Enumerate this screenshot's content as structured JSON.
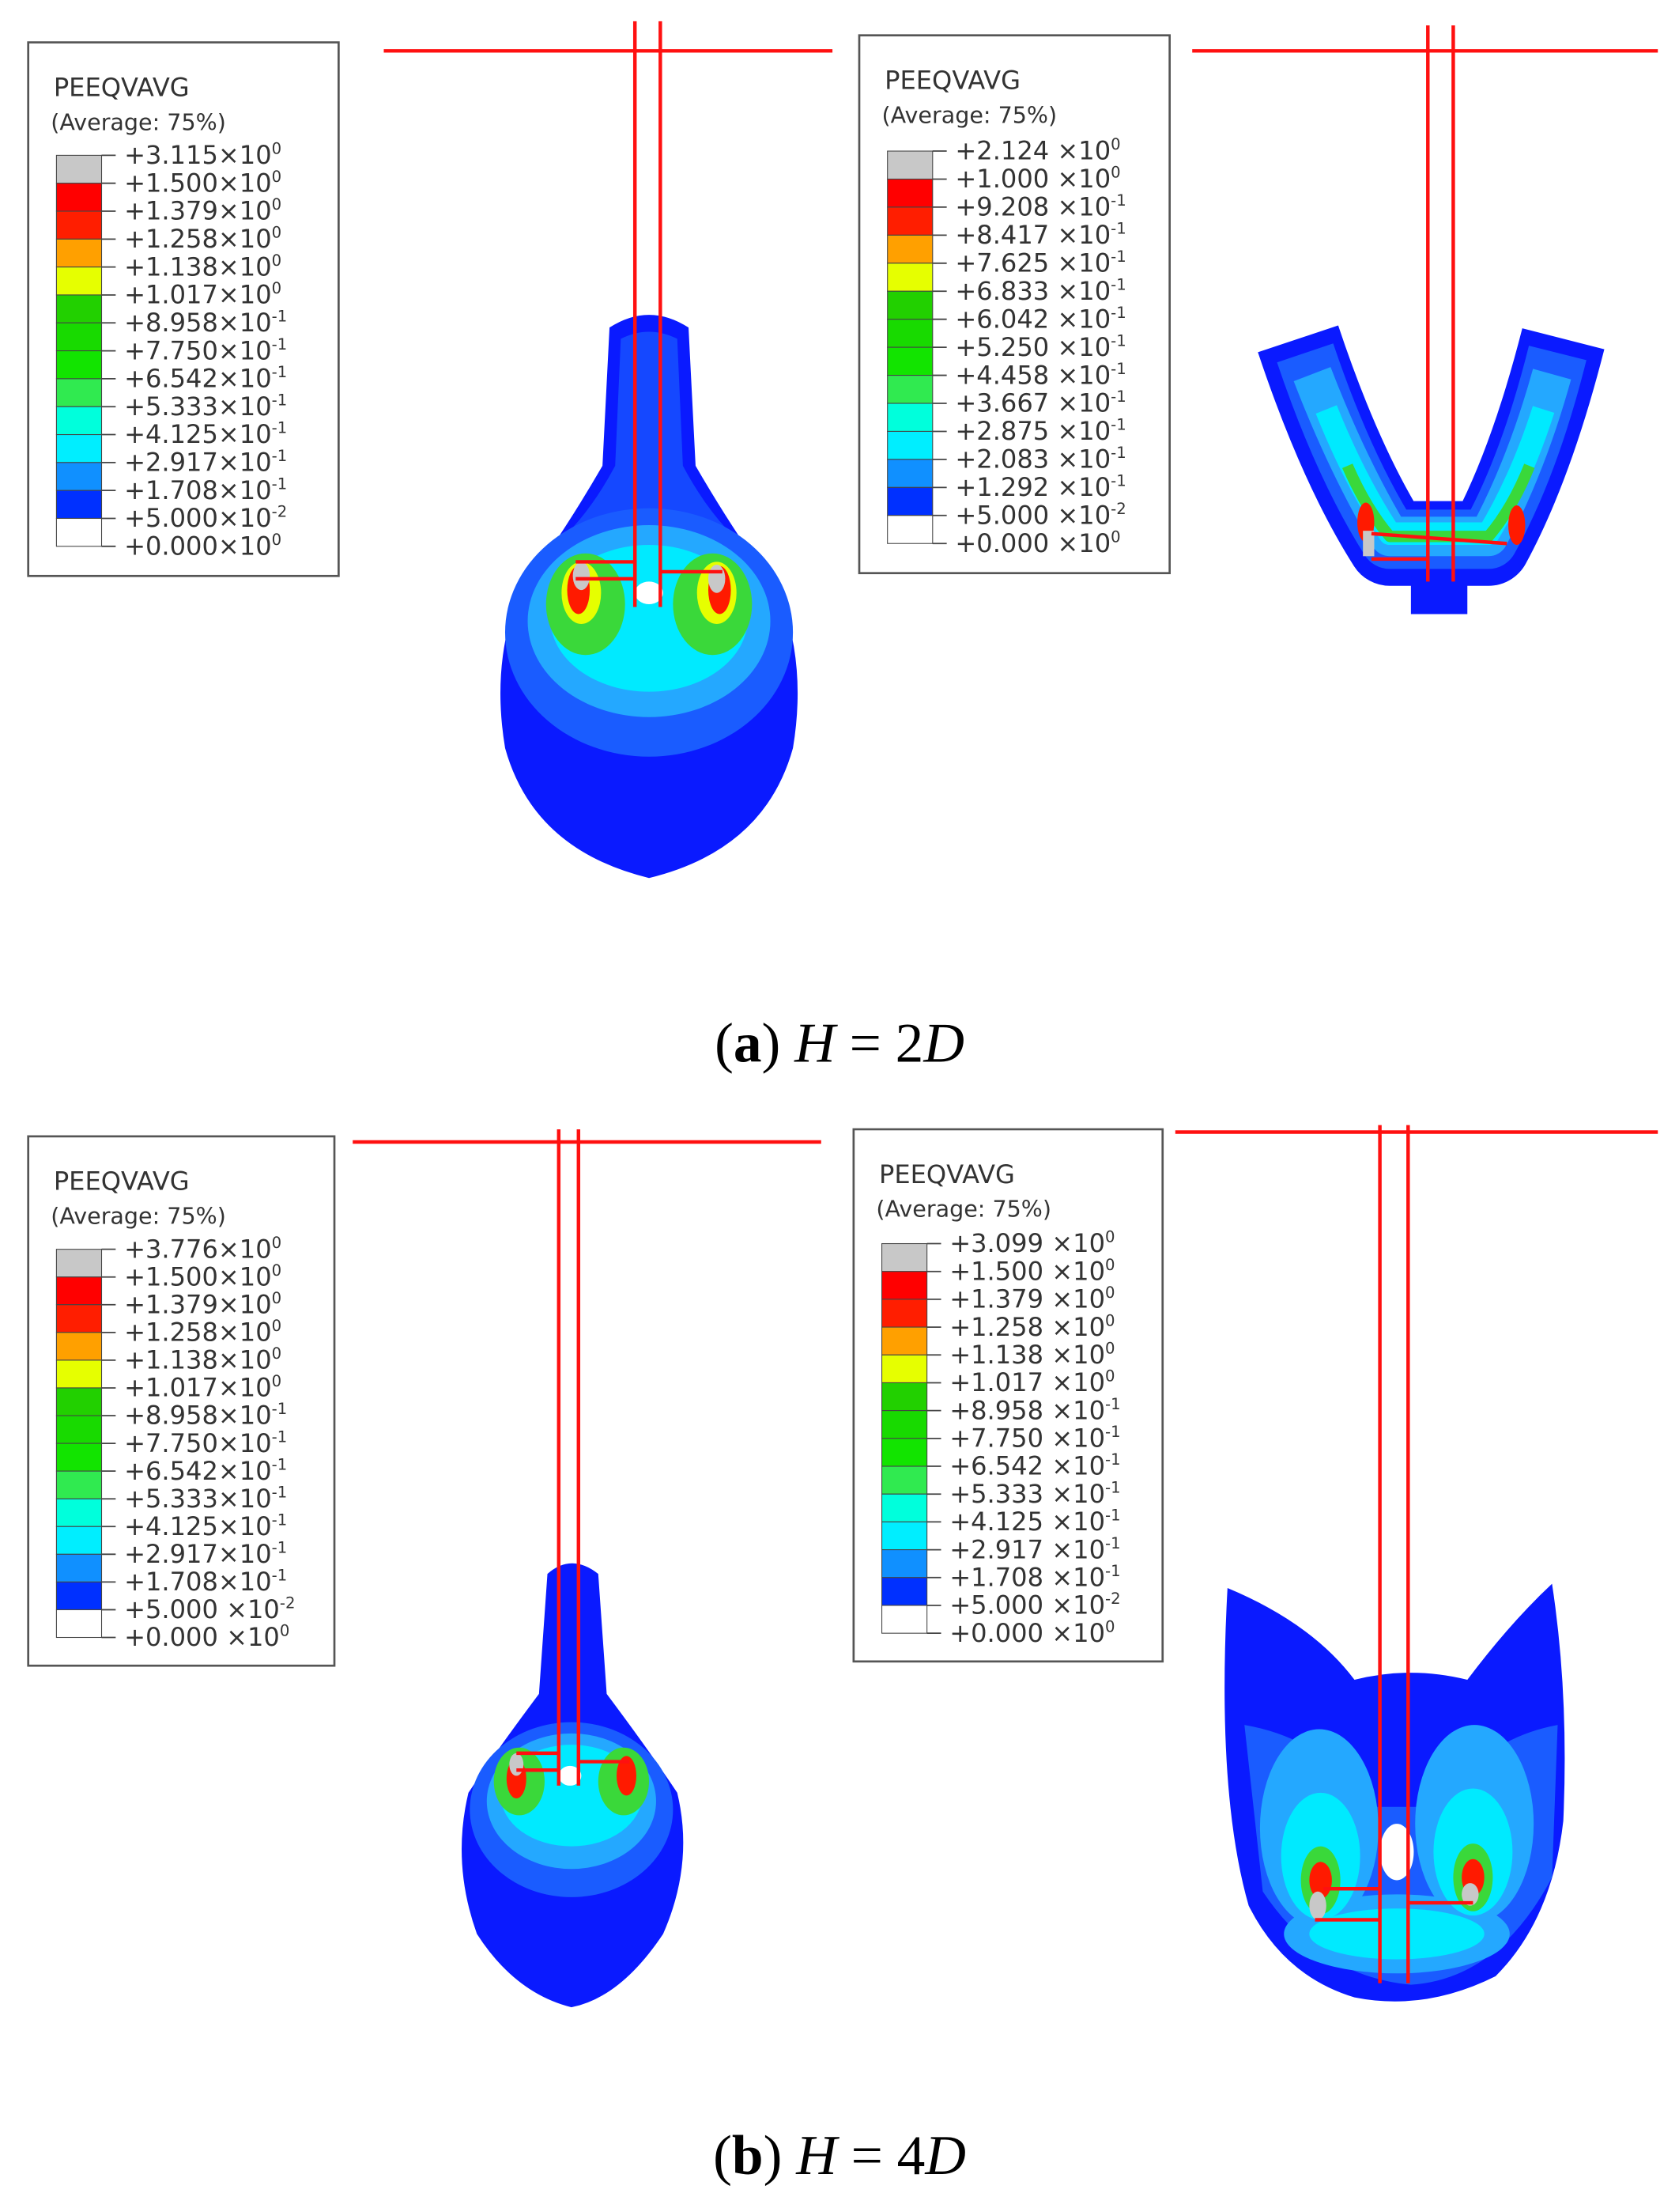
{
  "legend_colors": [
    "#c8c8c8",
    "#ff0000",
    "#ff1e00",
    "#ffa000",
    "#e6ff00",
    "#22d000",
    "#18da00",
    "#12e400",
    "#30ea50",
    "#00ffdc",
    "#00eeff",
    "#1090ff",
    "#0030ff",
    "#ffffff"
  ],
  "panels": [
    {
      "title": "PEEQVAVG",
      "subtitle": "(Average: 75%)",
      "labels": [
        {
          "text": "+3.115×10",
          "exp": "0"
        },
        {
          "text": "+1.500×10",
          "exp": "0"
        },
        {
          "text": "+1.379×10",
          "exp": "0"
        },
        {
          "text": "+1.258×10",
          "exp": "0"
        },
        {
          "text": "+1.138×10",
          "exp": "0"
        },
        {
          "text": "+1.017×10",
          "exp": "0"
        },
        {
          "text": "+8.958×10",
          "exp": "-1"
        },
        {
          "text": "+7.750×10",
          "exp": "-1"
        },
        {
          "text": "+6.542×10",
          "exp": "-1"
        },
        {
          "text": "+5.333×10",
          "exp": "-1"
        },
        {
          "text": "+4.125×10",
          "exp": "-1"
        },
        {
          "text": "+2.917×10",
          "exp": "-1"
        },
        {
          "text": "+1.708×10",
          "exp": "-1"
        },
        {
          "text": "+5.000×10",
          "exp": "-2"
        },
        {
          "text": "+0.000×10",
          "exp": "0"
        }
      ]
    },
    {
      "title": "PEEQVAVG",
      "subtitle": "(Average: 75%)",
      "labels": [
        {
          "text": "+2.124 ×10",
          "exp": "0"
        },
        {
          "text": "+1.000 ×10",
          "exp": "0"
        },
        {
          "text": "+9.208 ×10",
          "exp": "-1"
        },
        {
          "text": "+8.417 ×10",
          "exp": "-1"
        },
        {
          "text": "+7.625 ×10",
          "exp": "-1"
        },
        {
          "text": "+6.833 ×10",
          "exp": "-1"
        },
        {
          "text": "+6.042 ×10",
          "exp": "-1"
        },
        {
          "text": "+5.250 ×10",
          "exp": "-1"
        },
        {
          "text": "+4.458 ×10",
          "exp": "-1"
        },
        {
          "text": "+3.667 ×10",
          "exp": "-1"
        },
        {
          "text": "+2.875 ×10",
          "exp": "-1"
        },
        {
          "text": "+2.083 ×10",
          "exp": "-1"
        },
        {
          "text": "+1.292 ×10",
          "exp": "-1"
        },
        {
          "text": "+5.000 ×10",
          "exp": "-2"
        },
        {
          "text": "+0.000 ×10",
          "exp": "0"
        }
      ]
    },
    {
      "title": "PEEQVAVG",
      "subtitle": "(Average: 75%)",
      "labels": [
        {
          "text": "+3.776×10",
          "exp": "0"
        },
        {
          "text": "+1.500×10",
          "exp": "0"
        },
        {
          "text": "+1.379×10",
          "exp": "0"
        },
        {
          "text": "+1.258×10",
          "exp": "0"
        },
        {
          "text": "+1.138×10",
          "exp": "0"
        },
        {
          "text": "+1.017×10",
          "exp": "0"
        },
        {
          "text": "+8.958×10",
          "exp": "-1"
        },
        {
          "text": "+7.750×10",
          "exp": "-1"
        },
        {
          "text": "+6.542×10",
          "exp": "-1"
        },
        {
          "text": "+5.333×10",
          "exp": "-1"
        },
        {
          "text": "+4.125×10",
          "exp": "-1"
        },
        {
          "text": "+2.917×10",
          "exp": "-1"
        },
        {
          "text": "+1.708×10",
          "exp": "-1"
        },
        {
          "text": "+5.000 ×10",
          "exp": "-2"
        },
        {
          "text": "+0.000 ×10",
          "exp": "0"
        }
      ]
    },
    {
      "title": "PEEQVAVG",
      "subtitle": "(Average: 75%)",
      "labels": [
        {
          "text": "+3.099 ×10",
          "exp": "0"
        },
        {
          "text": "+1.500 ×10",
          "exp": "0"
        },
        {
          "text": "+1.379 ×10",
          "exp": "0"
        },
        {
          "text": "+1.258 ×10",
          "exp": "0"
        },
        {
          "text": "+1.138 ×10",
          "exp": "0"
        },
        {
          "text": "+1.017 ×10",
          "exp": "0"
        },
        {
          "text": "+8.958 ×10",
          "exp": "-1"
        },
        {
          "text": "+7.750 ×10",
          "exp": "-1"
        },
        {
          "text": "+6.542 ×10",
          "exp": "-1"
        },
        {
          "text": "+5.333 ×10",
          "exp": "-1"
        },
        {
          "text": "+4.125 ×10",
          "exp": "-1"
        },
        {
          "text": "+2.917 ×10",
          "exp": "-1"
        },
        {
          "text": "+1.708 ×10",
          "exp": "-1"
        },
        {
          "text": "+5.000 ×10",
          "exp": "-2"
        },
        {
          "text": "+0.000 ×10",
          "exp": "0"
        }
      ]
    }
  ],
  "captions": [
    [
      {
        "text": "(",
        "style": "normal"
      },
      {
        "text": "a",
        "style": "bold"
      },
      {
        "text": ") ",
        "style": "normal"
      },
      {
        "text": "H",
        "style": "italic"
      },
      {
        "text": " = 2",
        "style": "normal"
      },
      {
        "text": "D",
        "style": "italic"
      }
    ],
    [
      {
        "text": "(",
        "style": "normal"
      },
      {
        "text": "b",
        "style": "bold"
      },
      {
        "text": ") ",
        "style": "normal"
      },
      {
        "text": "H",
        "style": "italic"
      },
      {
        "text": " = 4",
        "style": "normal"
      },
      {
        "text": "D",
        "style": "italic"
      }
    ]
  ]
}
